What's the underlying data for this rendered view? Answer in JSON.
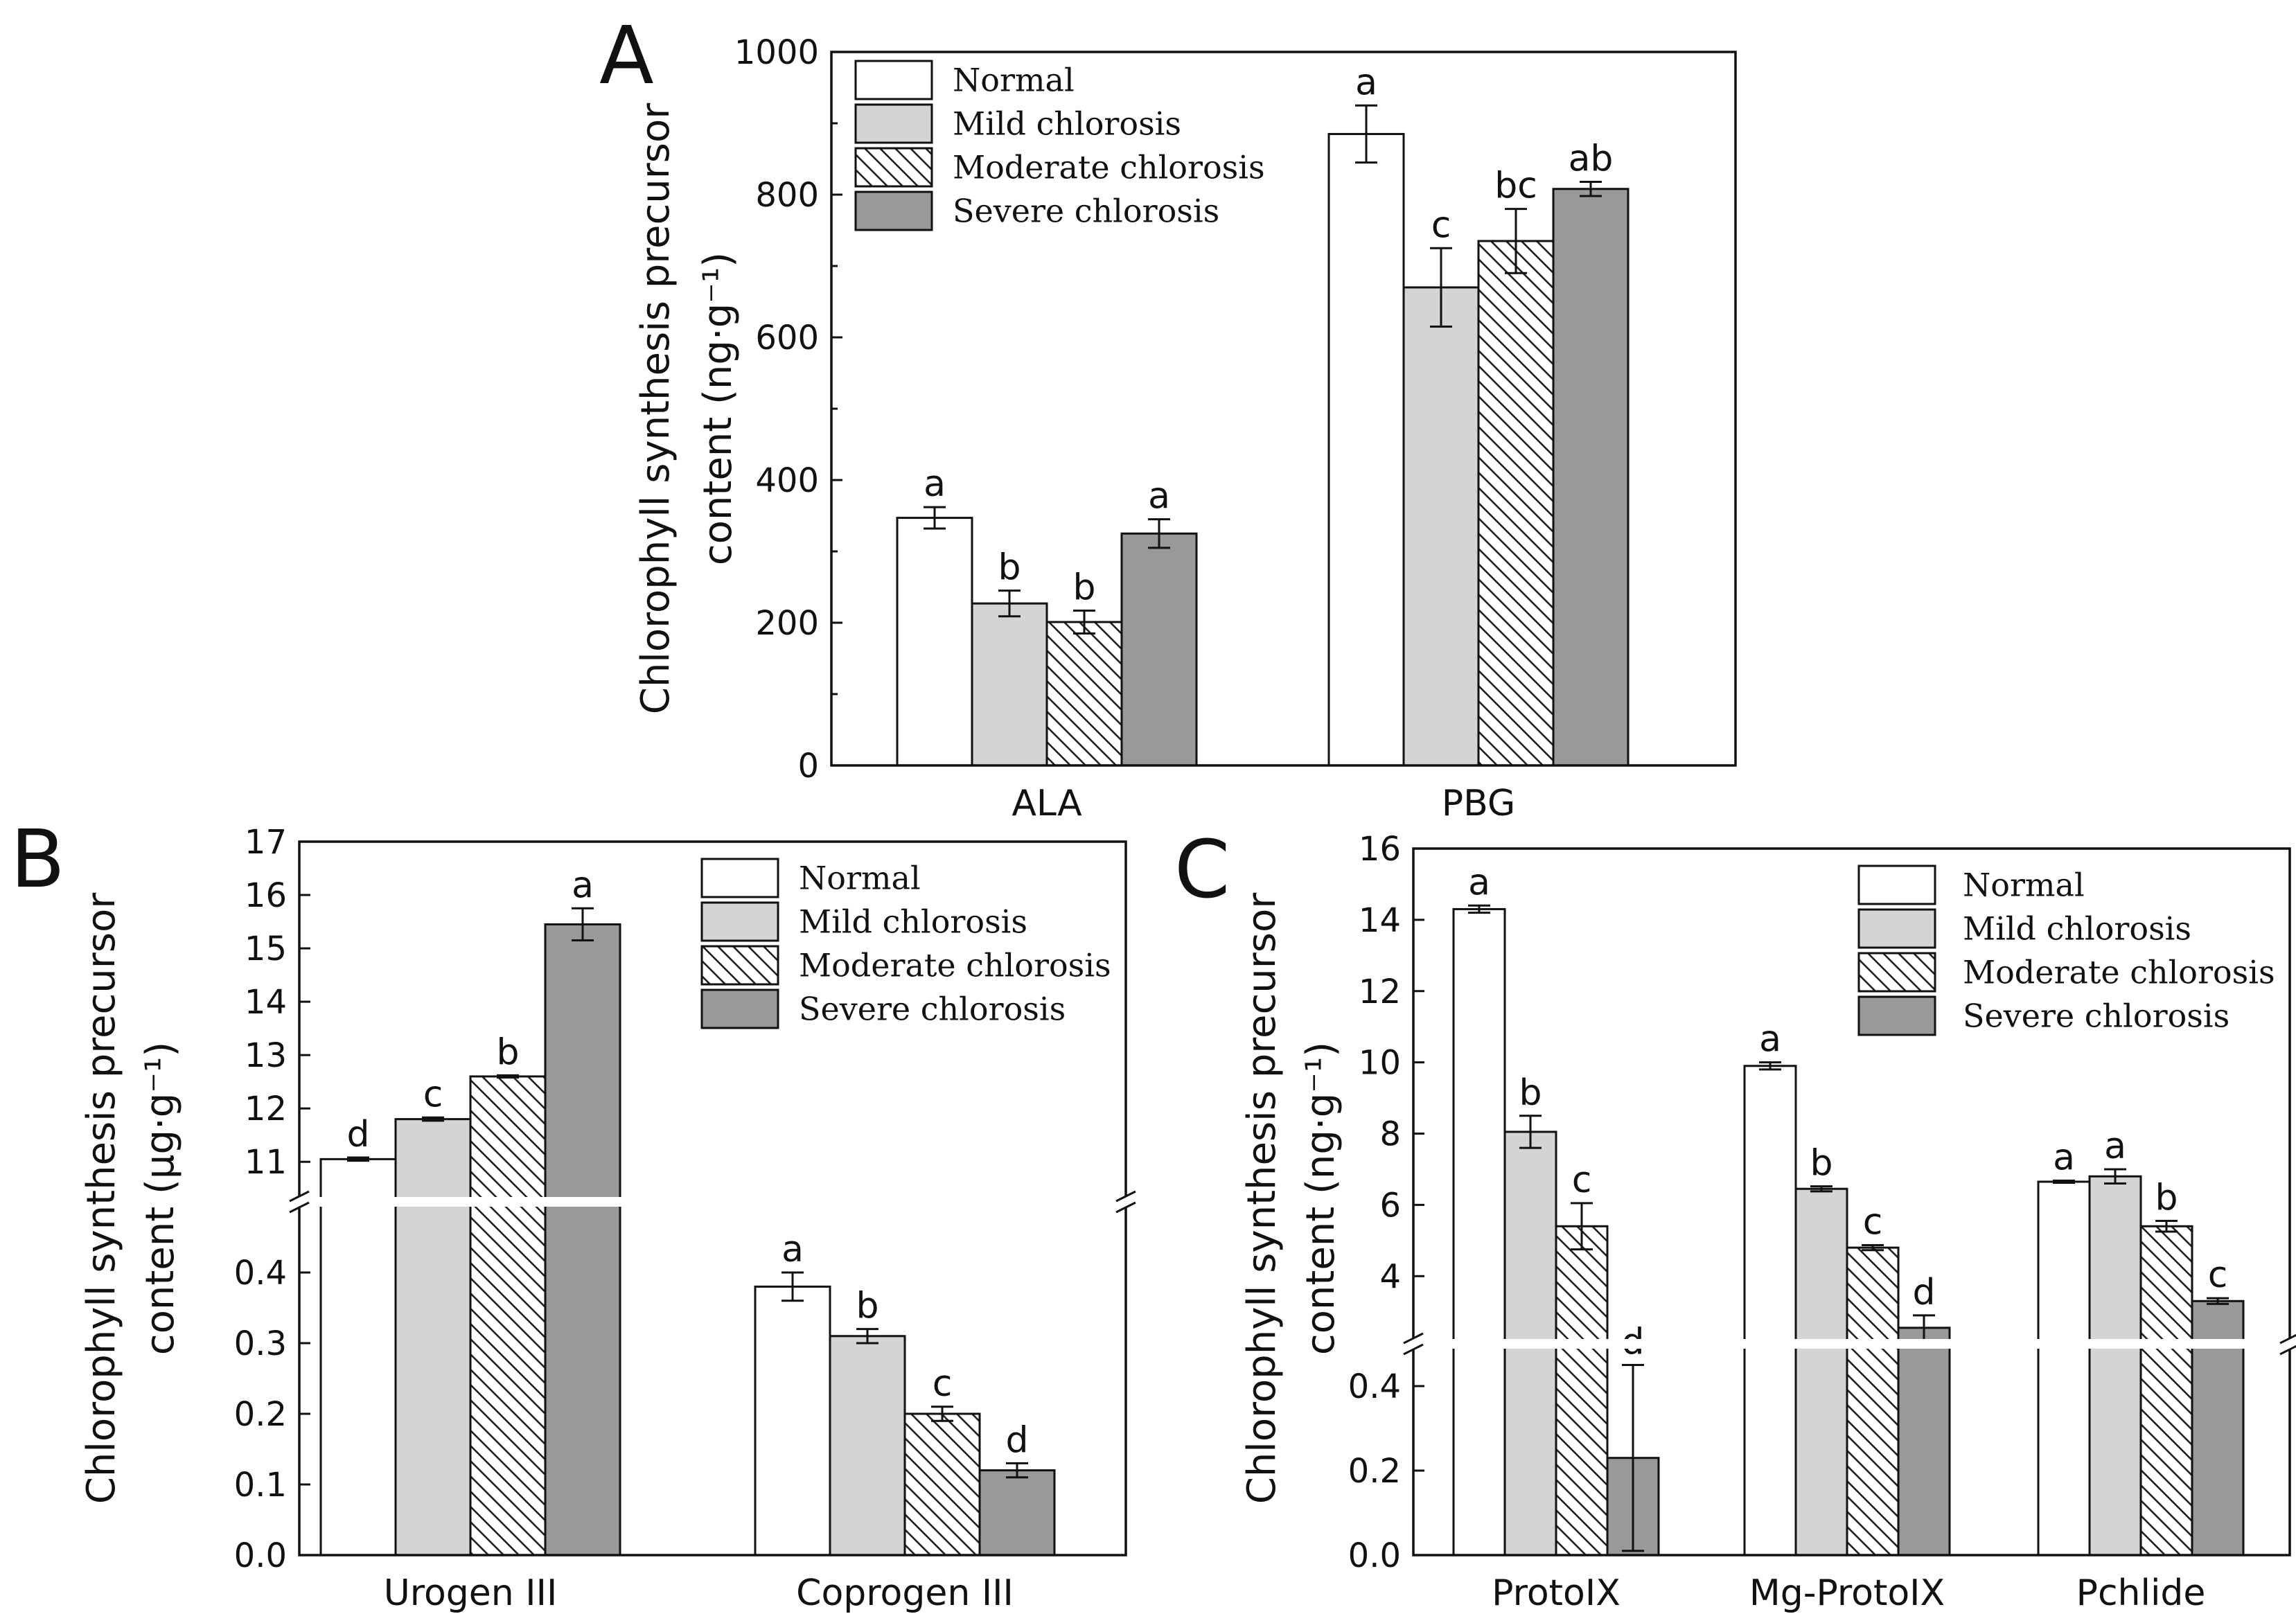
{
  "figure": {
    "legend": [
      "Normal",
      "Mild chlorosis",
      "Moderate chlorosis",
      "Severe chlorosis"
    ],
    "series_styles": [
      {
        "fill": "#ffffff",
        "hatch": false
      },
      {
        "fill": "#d4d4d4",
        "hatch": false
      },
      {
        "fill": "#ffffff",
        "hatch": true
      },
      {
        "fill": "#999999",
        "hatch": false
      }
    ]
  },
  "chart_data": [
    {
      "id": "A",
      "type": "bar",
      "panel_label": "A",
      "ylabel_lines": [
        "Chlorophyll synthesis precursor",
        "content (ng·g⁻¹)"
      ],
      "categories": [
        "ALA",
        "PBG"
      ],
      "ylim": [
        0,
        1000
      ],
      "yticks": [
        0,
        200,
        400,
        600,
        800,
        1000
      ],
      "series": [
        {
          "name": "Normal",
          "values": [
            347,
            885
          ],
          "errors": [
            15,
            40
          ],
          "sig": [
            "a",
            "a"
          ]
        },
        {
          "name": "Mild chlorosis",
          "values": [
            227,
            670
          ],
          "errors": [
            18,
            55
          ],
          "sig": [
            "b",
            "c"
          ]
        },
        {
          "name": "Moderate chlorosis",
          "values": [
            201,
            735
          ],
          "errors": [
            16,
            45
          ],
          "sig": [
            "b",
            "bc"
          ]
        },
        {
          "name": "Severe chlorosis",
          "values": [
            325,
            808
          ],
          "errors": [
            20,
            10
          ],
          "sig": [
            "a",
            "ab"
          ]
        }
      ]
    },
    {
      "id": "B",
      "type": "bar",
      "panel_label": "B",
      "ylabel_lines": [
        "Chlorophyll synthesis precursor",
        "content (μg·g⁻¹)"
      ],
      "categories": [
        "Urogen III",
        "Coprogen III"
      ],
      "axis_break": {
        "lower": [
          0,
          0.5
        ],
        "upper": [
          10.25,
          17
        ]
      },
      "yticks_lower": [
        0.0,
        0.1,
        0.2,
        0.3,
        0.4
      ],
      "yticks_upper": [
        11,
        12,
        13,
        14,
        15,
        16,
        17
      ],
      "series": [
        {
          "name": "Normal",
          "values": [
            11.05,
            0.38
          ],
          "errors": [
            0.03,
            0.02
          ],
          "sig": [
            "d",
            "a"
          ]
        },
        {
          "name": "Mild chlorosis",
          "values": [
            11.8,
            0.31
          ],
          "errors": [
            0.03,
            0.01
          ],
          "sig": [
            "c",
            "b"
          ]
        },
        {
          "name": "Moderate chlorosis",
          "values": [
            12.6,
            0.2
          ],
          "errors": [
            0.02,
            0.01
          ],
          "sig": [
            "b",
            "c"
          ]
        },
        {
          "name": "Severe chlorosis",
          "values": [
            15.45,
            0.12
          ],
          "errors": [
            0.3,
            0.01
          ],
          "sig": [
            "a",
            "d"
          ]
        }
      ]
    },
    {
      "id": "C",
      "type": "bar",
      "panel_label": "C",
      "ylabel_lines": [
        "Chlorophyll synthesis precursor",
        "content (ng·g⁻¹)"
      ],
      "categories": [
        "ProtoIX",
        "Mg-ProtoIX",
        "Pchlide"
      ],
      "axis_break": {
        "lower": [
          0,
          0.5
        ],
        "upper": [
          2.1,
          16
        ]
      },
      "yticks_lower": [
        0.0,
        0.2,
        0.4
      ],
      "yticks_upper": [
        4,
        6,
        8,
        10,
        12,
        14,
        16
      ],
      "series": [
        {
          "name": "Normal",
          "values": [
            14.3,
            9.9,
            6.65
          ],
          "errors": [
            0.1,
            0.1,
            0.03
          ],
          "sig": [
            "a",
            "a",
            "a"
          ]
        },
        {
          "name": "Mild chlorosis",
          "values": [
            8.05,
            6.45,
            6.8
          ],
          "errors": [
            0.45,
            0.07,
            0.2
          ],
          "sig": [
            "b",
            "b",
            "a"
          ]
        },
        {
          "name": "Moderate chlorosis",
          "values": [
            5.4,
            4.8,
            5.4
          ],
          "errors": [
            0.65,
            0.07,
            0.15
          ],
          "sig": [
            "c",
            "c",
            "b"
          ]
        },
        {
          "name": "Severe chlorosis",
          "values": [
            0.23,
            2.55,
            3.3
          ],
          "errors": [
            0.22,
            0.35,
            0.08
          ],
          "sig": [
            "d",
            "d",
            "c"
          ]
        }
      ]
    }
  ]
}
